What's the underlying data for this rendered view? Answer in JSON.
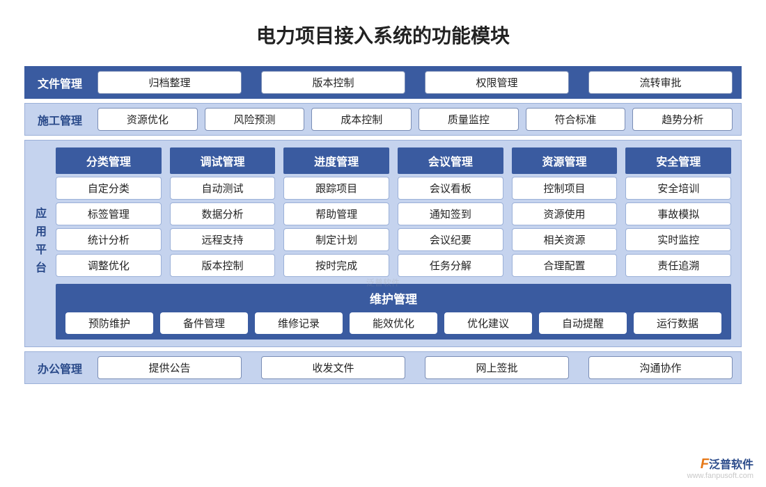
{
  "title": "电力项目接入系统的功能模块",
  "colors": {
    "header_bg": "#3a5ba0",
    "panel_bg": "#c5d3ee",
    "border": "#9bb0d8",
    "text": "#222222",
    "header_text": "#ffffff",
    "label_dark_text": "#2a4a8a",
    "accent": "#e67817"
  },
  "rows": {
    "file": {
      "label": "文件管理",
      "items": [
        "归档整理",
        "版本控制",
        "权限管理",
        "流转审批"
      ]
    },
    "construction": {
      "label": "施工管理",
      "items": [
        "资源优化",
        "风险预测",
        "成本控制",
        "质量监控",
        "符合标准",
        "趋势分析"
      ]
    },
    "office": {
      "label": "办公管理",
      "items": [
        "提供公告",
        "收发文件",
        "网上签批",
        "沟通协作"
      ]
    }
  },
  "platform": {
    "label": "应用平台",
    "columns": [
      {
        "header": "分类管理",
        "items": [
          "自定分类",
          "标签管理",
          "统计分析",
          "调整优化"
        ]
      },
      {
        "header": "调试管理",
        "items": [
          "自动测试",
          "数据分析",
          "远程支持",
          "版本控制"
        ]
      },
      {
        "header": "进度管理",
        "items": [
          "跟踪项目",
          "帮助管理",
          "制定计划",
          "按时完成"
        ]
      },
      {
        "header": "会议管理",
        "items": [
          "会议看板",
          "通知签到",
          "会议纪要",
          "任务分解"
        ]
      },
      {
        "header": "资源管理",
        "items": [
          "控制项目",
          "资源使用",
          "相关资源",
          "合理配置"
        ]
      },
      {
        "header": "安全管理",
        "items": [
          "安全培训",
          "事故模拟",
          "实时监控",
          "责任追溯"
        ]
      }
    ],
    "maintenance": {
      "header": "维护管理",
      "items": [
        "预防维护",
        "备件管理",
        "维修记录",
        "能效优化",
        "优化建议",
        "自动提醒",
        "运行数据"
      ]
    }
  },
  "watermark": {
    "brand_prefix": "F",
    "brand": "泛普软件",
    "url": "www.fanpusoft.com"
  }
}
